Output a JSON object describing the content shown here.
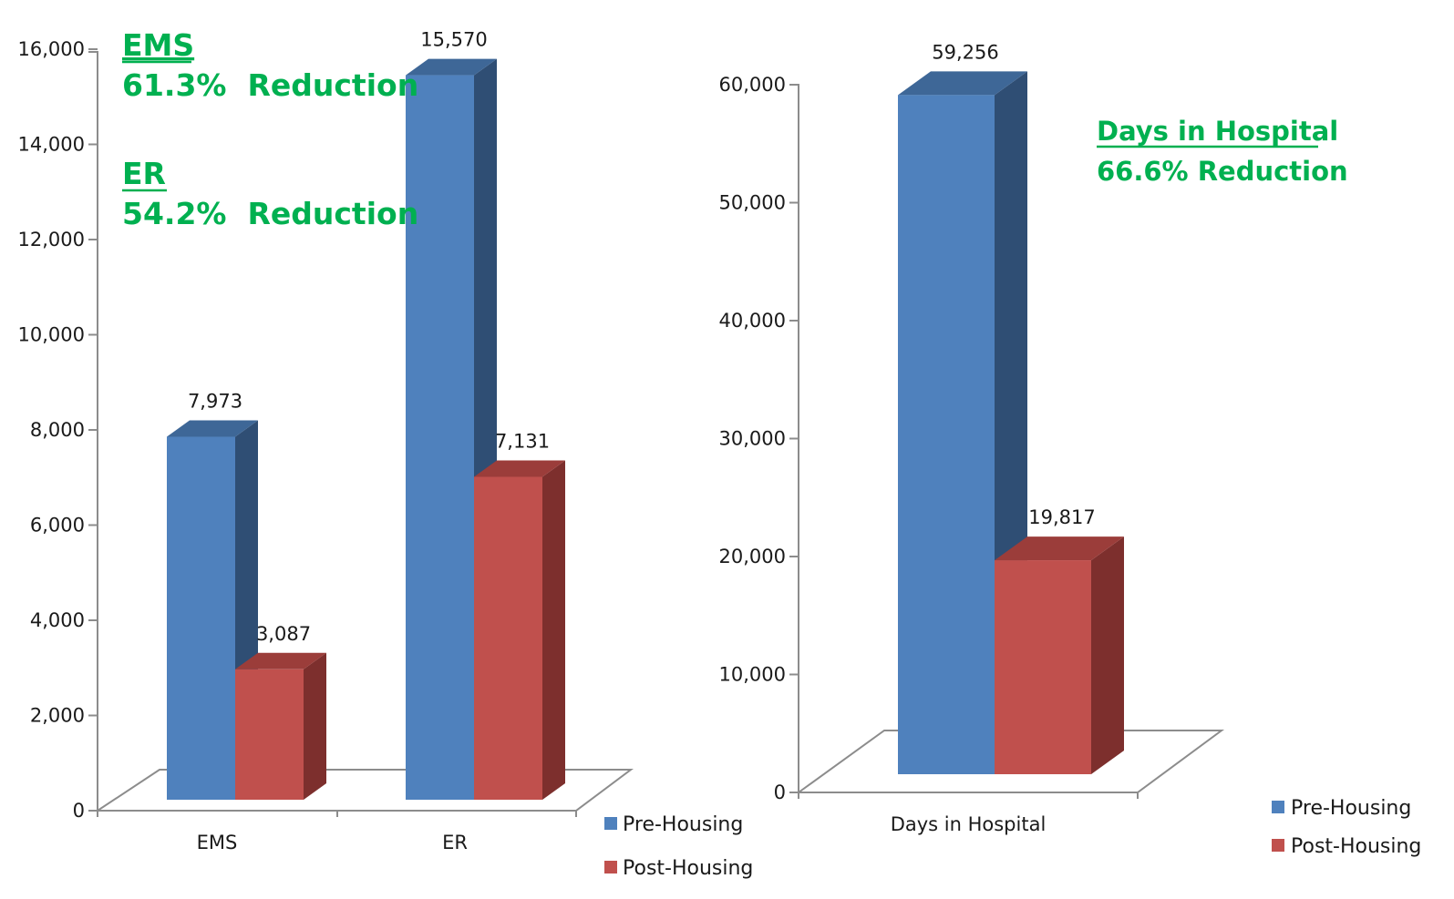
{
  "colors": {
    "pre_front": "#4F81BD",
    "pre_top": "#3E6797",
    "pre_side": "#2F4E74",
    "post_front": "#C0504D",
    "post_top": "#9B3D3A",
    "post_side": "#7D2F2D",
    "annotation": "#00B050"
  },
  "chart_data": [
    {
      "type": "bar",
      "categories": [
        "EMS",
        "ER"
      ],
      "series": [
        {
          "name": "Pre-Housing",
          "values": [
            7973,
            15570
          ]
        },
        {
          "name": "Post-Housing",
          "values": [
            3087,
            7131
          ]
        }
      ],
      "data_labels": [
        [
          "7,973",
          "15,570"
        ],
        [
          "3,087",
          "7,131"
        ]
      ],
      "ylim": [
        0,
        16000
      ],
      "yticks": [
        0,
        2000,
        4000,
        6000,
        8000,
        10000,
        12000,
        14000,
        16000
      ],
      "ytick_labels": [
        "0",
        "2,000",
        "4,000",
        "6,000",
        "8,000",
        "10,000",
        "12,000",
        "14,000",
        "16,000"
      ],
      "legend": [
        "Pre-Housing",
        "Post-Housing"
      ],
      "legend_placement": "bottom-right",
      "annotations": [
        {
          "heading": "EMS",
          "text": "61.3%  Reduction"
        },
        {
          "heading": "ER",
          "text": "54.2%  Reduction"
        }
      ],
      "grid": false
    },
    {
      "type": "bar",
      "categories": [
        "Days in Hospital"
      ],
      "series": [
        {
          "name": "Pre-Housing",
          "values": [
            59256
          ]
        },
        {
          "name": "Post-Housing",
          "values": [
            19817
          ]
        }
      ],
      "data_labels": [
        [
          "59,256"
        ],
        [
          "19,817"
        ]
      ],
      "ylim": [
        0,
        60000
      ],
      "yticks": [
        0,
        10000,
        20000,
        30000,
        40000,
        50000,
        60000
      ],
      "ytick_labels": [
        "0",
        "10,000",
        "20,000",
        "30,000",
        "40,000",
        "50,000",
        "60,000"
      ],
      "legend": [
        "Pre-Housing",
        "Post-Housing"
      ],
      "legend_placement": "bottom-right",
      "annotations": [
        {
          "heading": "Days in Hospital",
          "text": "66.6% Reduction"
        }
      ],
      "grid": false
    }
  ]
}
